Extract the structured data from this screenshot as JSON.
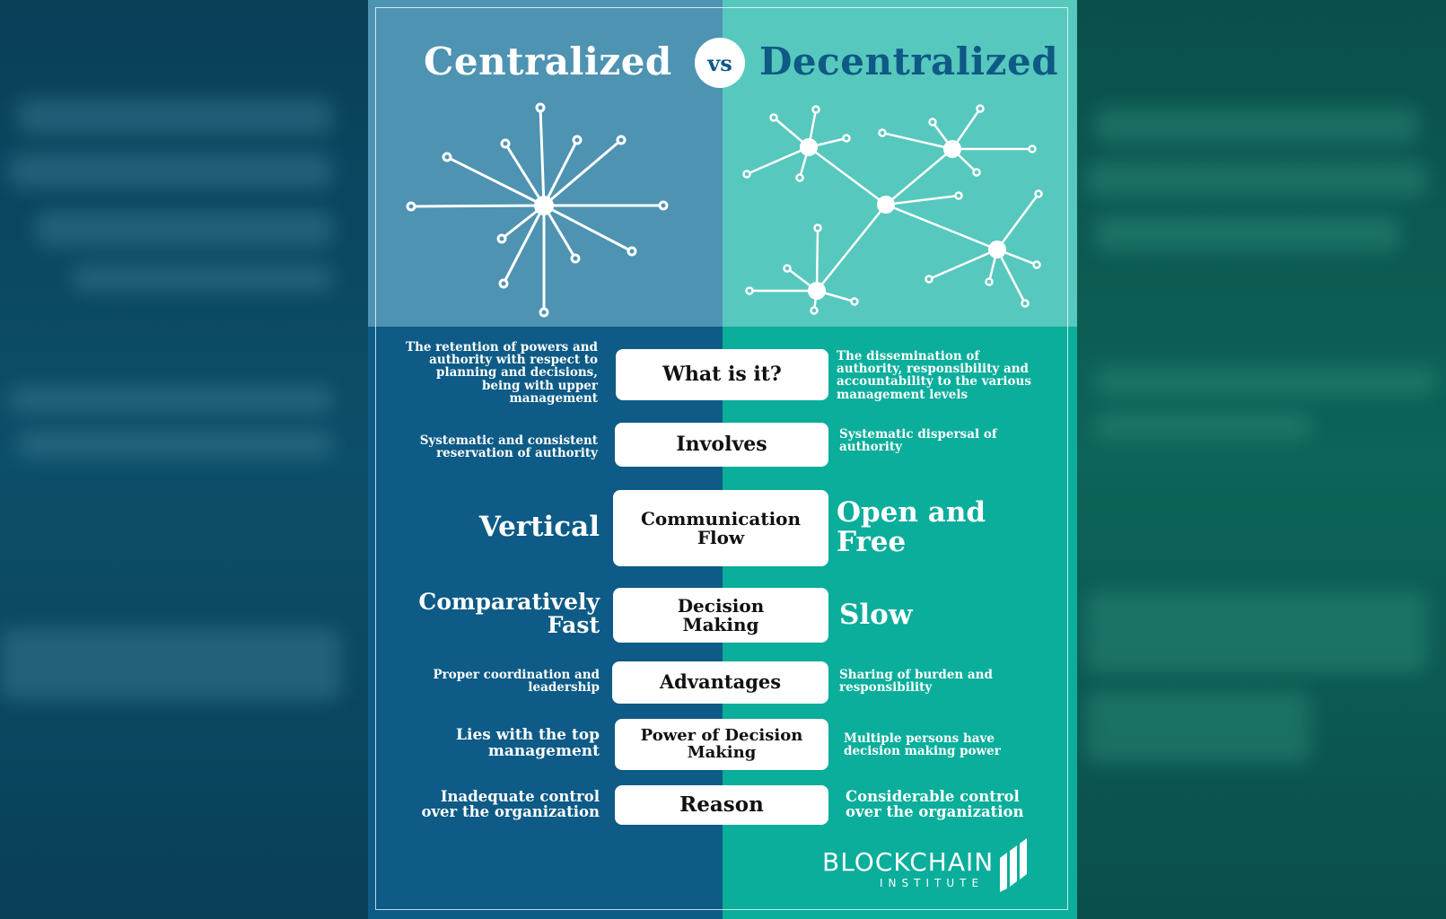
{
  "header": {
    "left_title": "Centralized",
    "vs_label": "vs",
    "right_title": "Decentralized"
  },
  "rows": [
    {
      "label": "What is it?",
      "left": "The retention of powers and authority with respect to planning and decisions, being with upper management",
      "right": "The dissemination of authority, responsibility and accountability to the various management levels"
    },
    {
      "label": "Involves",
      "left": "Systematic and consistent reservation of authority",
      "right": "Systematic dispersal of authority"
    },
    {
      "label": "Communication Flow",
      "left": "Vertical",
      "right": "Open and Free"
    },
    {
      "label": "Decision Making",
      "left": "Comparatively Fast",
      "right": "Slow"
    },
    {
      "label": "Advantages",
      "left": "Proper coordination and leadership",
      "right": "Sharing of burden and responsibility"
    },
    {
      "label": "Power of Decision Making",
      "left": "Lies with the top management",
      "right": "Multiple persons have decision making power"
    },
    {
      "label": "Reason",
      "left": "Inadequate control over the organization",
      "right": "Considerable control over the organization"
    }
  ],
  "logo": {
    "name": "BLOCKCHAIN",
    "sub": "INSTITUTE"
  },
  "colors": {
    "centralized_dark": "#0d5b86",
    "centralized_light": "#4e93b1",
    "decentralized_dark": "#0aae9b",
    "decentralized_light": "#57c8bd"
  },
  "icons": {
    "centralized_network": "star-network-icon",
    "decentralized_network": "mesh-network-icon",
    "logo": "blockchain-institute-logo-icon"
  }
}
